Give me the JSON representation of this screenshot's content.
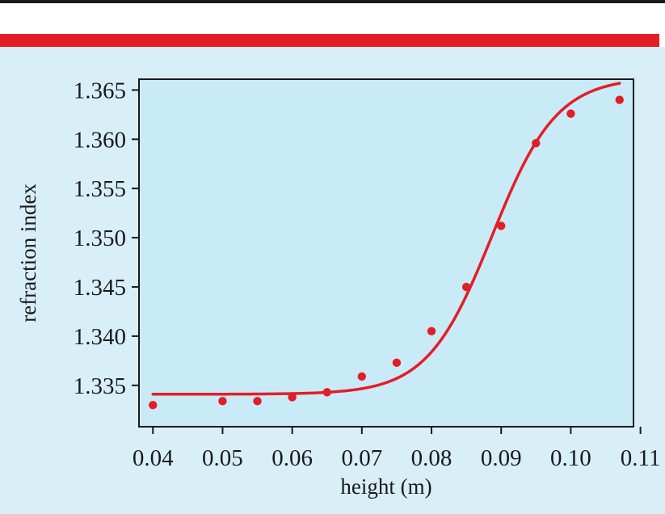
{
  "colors": {
    "panel_background": "#d9eff8",
    "plot_background": "#c9ebf7",
    "accent_red": "#e31e26",
    "top_rule": "#1a1a1a",
    "axis": "#1a1a1a"
  },
  "chart_data": {
    "type": "scatter",
    "title": "",
    "xlabel": "height (m)",
    "ylabel": "refraction index",
    "xlim": [
      0.038,
      0.109
    ],
    "ylim": [
      1.3308,
      1.3661
    ],
    "x_ticks": [
      0.04,
      0.05,
      0.06,
      0.07,
      0.08,
      0.09,
      0.1,
      0.11
    ],
    "x_tick_labels": [
      "0.04",
      "0.05",
      "0.06",
      "0.07",
      "0.08",
      "0.09",
      "0.10",
      "0.11"
    ],
    "y_ticks": [
      1.335,
      1.34,
      1.345,
      1.35,
      1.355,
      1.36,
      1.365
    ],
    "y_tick_labels": [
      "1.335",
      "1.340",
      "1.345",
      "1.350",
      "1.355",
      "1.360",
      "1.365"
    ],
    "grid": false,
    "legend": "none",
    "series": [
      {
        "kind": "points",
        "x": [
          0.04,
          0.05,
          0.055,
          0.06,
          0.065,
          0.07,
          0.075,
          0.08,
          0.085,
          0.09,
          0.095,
          0.1,
          0.107
        ],
        "y": [
          1.333,
          1.3334,
          1.3334,
          1.3338,
          1.3343,
          1.3359,
          1.3373,
          1.3405,
          1.345,
          1.3512,
          1.3596,
          1.3626,
          1.364
        ]
      },
      {
        "kind": "fitted-curve",
        "model": "sigmoid",
        "lower": 1.3341,
        "upper": 1.3663,
        "midpoint": 0.0887,
        "width": 0.00465,
        "x_range": [
          0.04,
          0.107
        ]
      }
    ]
  }
}
